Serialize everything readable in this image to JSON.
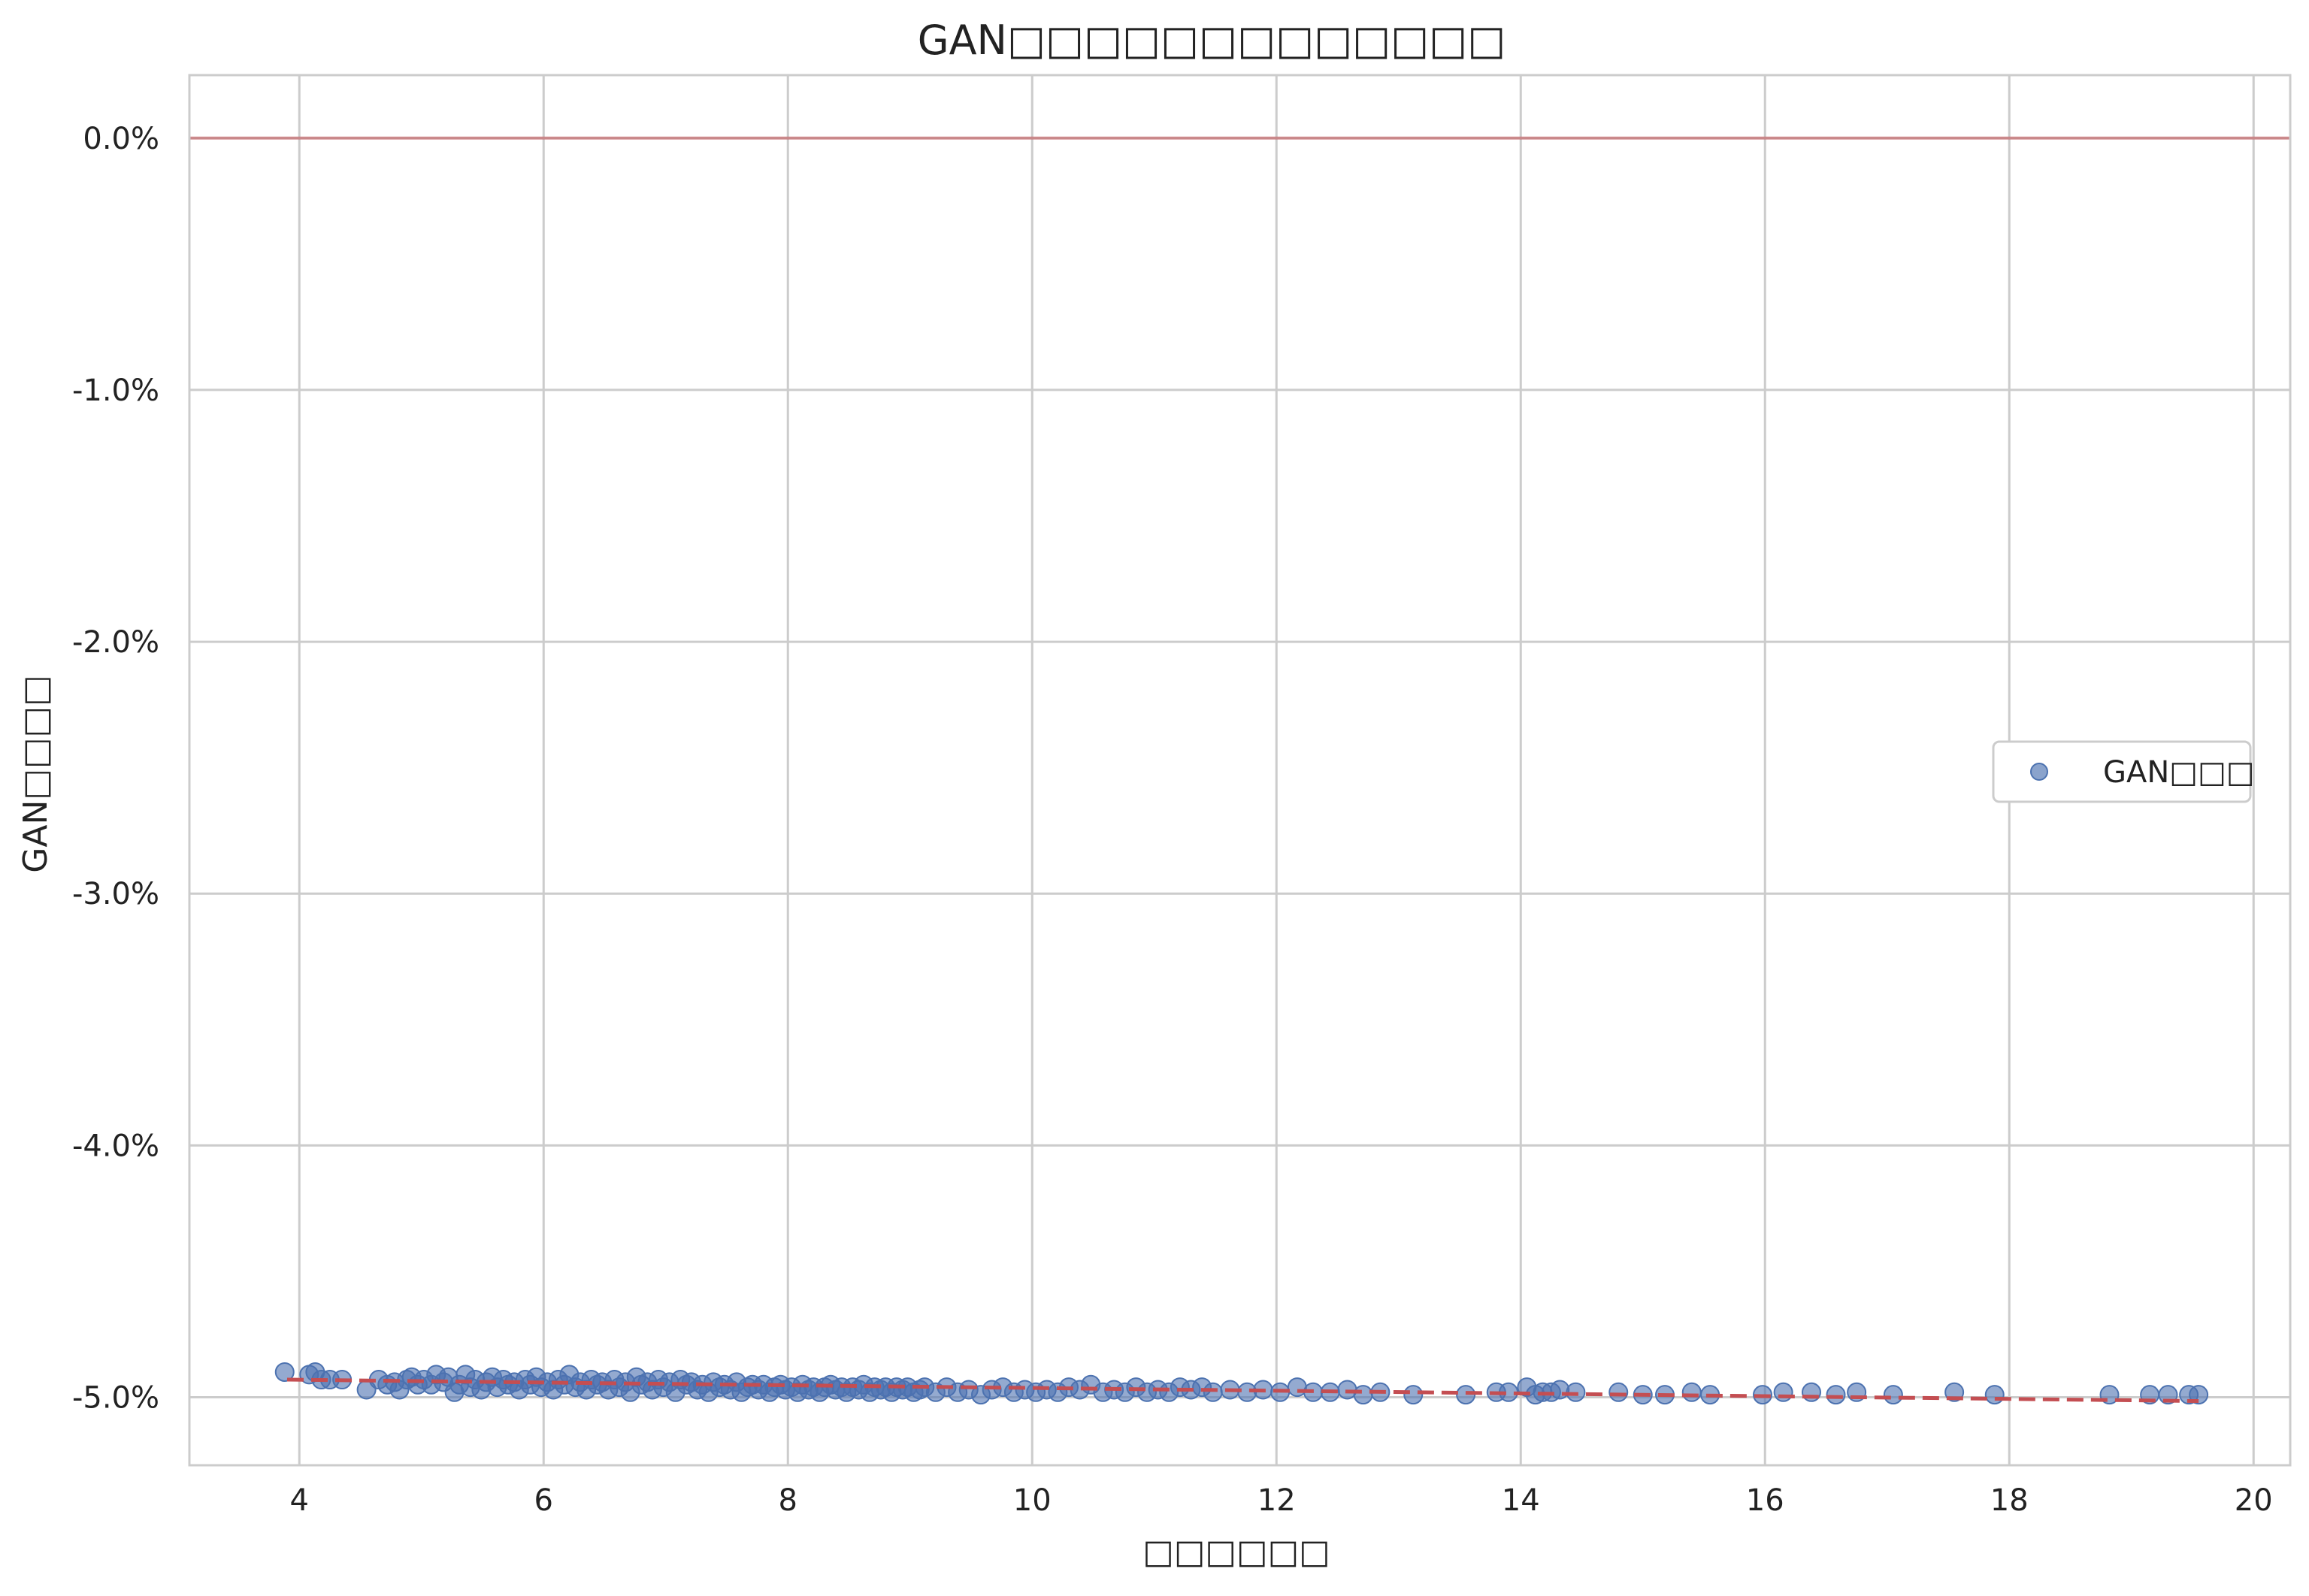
{
  "chart_data": {
    "type": "scatter",
    "title": "GAN□□□□□□□□□□□□□",
    "xlabel": "□□□□□□",
    "ylabel": "GAN□□□□",
    "xlim": [
      3.1,
      20.3
    ],
    "ylim": [
      -5.27,
      0.25
    ],
    "x_ticks": [
      4,
      6,
      8,
      10,
      12,
      14,
      16,
      18,
      20
    ],
    "y_ticks": [
      0.0,
      -1.0,
      -2.0,
      -3.0,
      -4.0,
      -5.0
    ],
    "y_tick_labels": [
      "0.0%",
      "-1.0%",
      "-2.0%",
      "-3.0%",
      "-4.0%",
      "-5.0%"
    ],
    "grid": true,
    "legend_position": "center-right",
    "series": [
      {
        "name": "GAN□□□",
        "color": "#4c72b0",
        "points": [
          [
            3.88,
            -4.9
          ],
          [
            4.08,
            -4.91
          ],
          [
            4.13,
            -4.9
          ],
          [
            4.18,
            -4.93
          ],
          [
            4.25,
            -4.93
          ],
          [
            4.35,
            -4.93
          ],
          [
            4.55,
            -4.97
          ],
          [
            4.65,
            -4.93
          ],
          [
            4.72,
            -4.95
          ],
          [
            4.78,
            -4.94
          ],
          [
            4.82,
            -4.97
          ],
          [
            4.88,
            -4.93
          ],
          [
            4.92,
            -4.92
          ],
          [
            4.97,
            -4.95
          ],
          [
            5.02,
            -4.93
          ],
          [
            5.08,
            -4.95
          ],
          [
            5.12,
            -4.91
          ],
          [
            5.18,
            -4.94
          ],
          [
            5.22,
            -4.92
          ],
          [
            5.27,
            -4.98
          ],
          [
            5.31,
            -4.95
          ],
          [
            5.36,
            -4.91
          ],
          [
            5.4,
            -4.96
          ],
          [
            5.44,
            -4.93
          ],
          [
            5.49,
            -4.97
          ],
          [
            5.53,
            -4.94
          ],
          [
            5.58,
            -4.92
          ],
          [
            5.62,
            -4.96
          ],
          [
            5.67,
            -4.93
          ],
          [
            5.71,
            -4.95
          ],
          [
            5.76,
            -4.94
          ],
          [
            5.8,
            -4.97
          ],
          [
            5.85,
            -4.93
          ],
          [
            5.89,
            -4.95
          ],
          [
            5.94,
            -4.92
          ],
          [
            5.98,
            -4.96
          ],
          [
            6.03,
            -4.94
          ],
          [
            6.08,
            -4.97
          ],
          [
            6.12,
            -4.93
          ],
          [
            6.17,
            -4.95
          ],
          [
            6.21,
            -4.91
          ],
          [
            6.26,
            -4.96
          ],
          [
            6.3,
            -4.94
          ],
          [
            6.35,
            -4.97
          ],
          [
            6.39,
            -4.93
          ],
          [
            6.44,
            -4.95
          ],
          [
            6.48,
            -4.94
          ],
          [
            6.53,
            -4.97
          ],
          [
            6.58,
            -4.93
          ],
          [
            6.62,
            -4.96
          ],
          [
            6.67,
            -4.94
          ],
          [
            6.71,
            -4.98
          ],
          [
            6.76,
            -4.92
          ],
          [
            6.8,
            -4.95
          ],
          [
            6.85,
            -4.94
          ],
          [
            6.89,
            -4.97
          ],
          [
            6.94,
            -4.93
          ],
          [
            6.98,
            -4.96
          ],
          [
            7.03,
            -4.94
          ],
          [
            7.08,
            -4.98
          ],
          [
            7.12,
            -4.93
          ],
          [
            7.17,
            -4.95
          ],
          [
            7.21,
            -4.94
          ],
          [
            7.26,
            -4.97
          ],
          [
            7.3,
            -4.95
          ],
          [
            7.35,
            -4.98
          ],
          [
            7.39,
            -4.94
          ],
          [
            7.44,
            -4.96
          ],
          [
            7.48,
            -4.95
          ],
          [
            7.53,
            -4.97
          ],
          [
            7.58,
            -4.94
          ],
          [
            7.62,
            -4.98
          ],
          [
            7.67,
            -4.96
          ],
          [
            7.71,
            -4.95
          ],
          [
            7.76,
            -4.97
          ],
          [
            7.8,
            -4.95
          ],
          [
            7.85,
            -4.98
          ],
          [
            7.89,
            -4.96
          ],
          [
            7.94,
            -4.95
          ],
          [
            7.98,
            -4.97
          ],
          [
            8.03,
            -4.96
          ],
          [
            8.08,
            -4.98
          ],
          [
            8.12,
            -4.95
          ],
          [
            8.17,
            -4.97
          ],
          [
            8.21,
            -4.96
          ],
          [
            8.26,
            -4.98
          ],
          [
            8.3,
            -4.96
          ],
          [
            8.35,
            -4.95
          ],
          [
            8.39,
            -4.97
          ],
          [
            8.44,
            -4.96
          ],
          [
            8.48,
            -4.98
          ],
          [
            8.53,
            -4.96
          ],
          [
            8.58,
            -4.97
          ],
          [
            8.62,
            -4.95
          ],
          [
            8.67,
            -4.98
          ],
          [
            8.71,
            -4.96
          ],
          [
            8.76,
            -4.97
          ],
          [
            8.8,
            -4.96
          ],
          [
            8.85,
            -4.98
          ],
          [
            8.89,
            -4.96
          ],
          [
            8.94,
            -4.97
          ],
          [
            8.98,
            -4.96
          ],
          [
            9.03,
            -4.98
          ],
          [
            9.08,
            -4.97
          ],
          [
            9.12,
            -4.96
          ],
          [
            9.21,
            -4.98
          ],
          [
            9.3,
            -4.96
          ],
          [
            9.39,
            -4.98
          ],
          [
            9.48,
            -4.97
          ],
          [
            9.58,
            -4.99
          ],
          [
            9.67,
            -4.97
          ],
          [
            9.76,
            -4.96
          ],
          [
            9.85,
            -4.98
          ],
          [
            9.94,
            -4.97
          ],
          [
            10.03,
            -4.98
          ],
          [
            10.12,
            -4.97
          ],
          [
            10.21,
            -4.98
          ],
          [
            10.3,
            -4.96
          ],
          [
            10.39,
            -4.97
          ],
          [
            10.48,
            -4.95
          ],
          [
            10.58,
            -4.98
          ],
          [
            10.67,
            -4.97
          ],
          [
            10.76,
            -4.98
          ],
          [
            10.85,
            -4.96
          ],
          [
            10.94,
            -4.98
          ],
          [
            11.03,
            -4.97
          ],
          [
            11.12,
            -4.98
          ],
          [
            11.21,
            -4.96
          ],
          [
            11.3,
            -4.97
          ],
          [
            11.39,
            -4.96
          ],
          [
            11.48,
            -4.98
          ],
          [
            11.62,
            -4.97
          ],
          [
            11.76,
            -4.98
          ],
          [
            11.89,
            -4.97
          ],
          [
            12.03,
            -4.98
          ],
          [
            12.17,
            -4.96
          ],
          [
            12.3,
            -4.98
          ],
          [
            12.44,
            -4.98
          ],
          [
            12.58,
            -4.97
          ],
          [
            12.71,
            -4.99
          ],
          [
            12.85,
            -4.98
          ],
          [
            13.12,
            -4.99
          ],
          [
            13.55,
            -4.99
          ],
          [
            13.8,
            -4.98
          ],
          [
            13.9,
            -4.98
          ],
          [
            14.05,
            -4.96
          ],
          [
            14.12,
            -4.99
          ],
          [
            14.18,
            -4.98
          ],
          [
            14.25,
            -4.98
          ],
          [
            14.32,
            -4.97
          ],
          [
            14.45,
            -4.98
          ],
          [
            14.8,
            -4.98
          ],
          [
            15.0,
            -4.99
          ],
          [
            15.18,
            -4.99
          ],
          [
            15.4,
            -4.98
          ],
          [
            15.55,
            -4.99
          ],
          [
            15.98,
            -4.99
          ],
          [
            16.15,
            -4.98
          ],
          [
            16.38,
            -4.98
          ],
          [
            16.58,
            -4.99
          ],
          [
            16.75,
            -4.98
          ],
          [
            17.05,
            -4.99
          ],
          [
            17.55,
            -4.98
          ],
          [
            17.88,
            -4.99
          ],
          [
            18.82,
            -4.99
          ],
          [
            19.15,
            -4.99
          ],
          [
            19.3,
            -4.99
          ],
          [
            19.47,
            -4.99
          ],
          [
            19.55,
            -4.99
          ]
        ]
      }
    ],
    "trend_line": {
      "color": "#c44e52",
      "style": "dashed",
      "x": [
        3.9,
        19.55
      ],
      "y": [
        -4.93,
        -5.015
      ]
    },
    "reference_line": {
      "color": "#c44e52",
      "y": 0.0
    }
  }
}
